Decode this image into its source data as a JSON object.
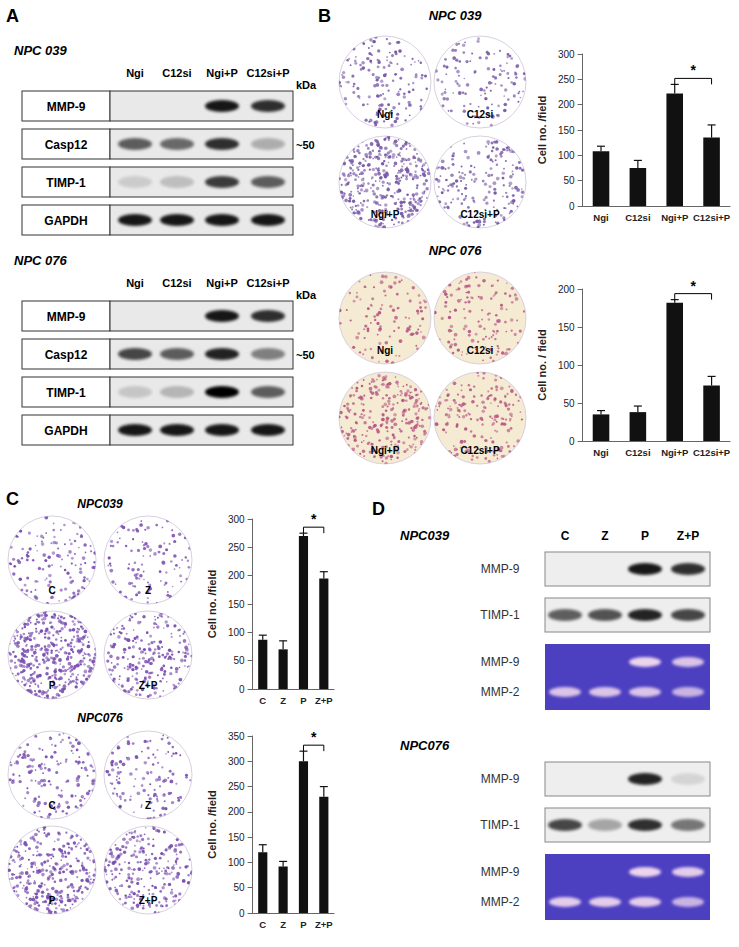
{
  "chart_data": [
    {
      "type": "bar",
      "categories": [
        "Ngi",
        "C12si",
        "Ngi+P",
        "C12si+P"
      ],
      "values": [
        108,
        75,
        222,
        135
      ],
      "errors": [
        10,
        15,
        18,
        25
      ],
      "color": "#111111",
      "y_label": "Cell no. /field",
      "ylim": [
        0,
        300
      ],
      "yticks": [
        0,
        50,
        100,
        150,
        200,
        250,
        300
      ],
      "grid": false,
      "annotations": [
        {
          "from": "Ngi+P",
          "to": "C12si+P",
          "text": "*"
        }
      ]
    },
    {
      "type": "bar",
      "categories": [
        "Ngi",
        "C12si",
        "Ngi+P",
        "C12si+P"
      ],
      "values": [
        35,
        38,
        182,
        73
      ],
      "errors": [
        5,
        8,
        4,
        12
      ],
      "color": "#111111",
      "y_label": "Cell no. / field",
      "ylim": [
        0,
        200
      ],
      "yticks": [
        0,
        50,
        100,
        150,
        200
      ],
      "grid": false,
      "annotations": [
        {
          "from": "Ngi+P",
          "to": "C12si+P",
          "text": "*"
        }
      ]
    },
    {
      "type": "bar",
      "categories": [
        "C",
        "Z",
        "P",
        "Z+P"
      ],
      "values": [
        87,
        70,
        270,
        195
      ],
      "errors": [
        8,
        15,
        5,
        12
      ],
      "color": "#111111",
      "y_label": "Cell no. /field",
      "ylim": [
        0,
        300
      ],
      "yticks": [
        0,
        50,
        100,
        150,
        200,
        250,
        300
      ],
      "grid": false,
      "annotations": [
        {
          "from": "P",
          "to": "Z+P",
          "text": "*"
        }
      ]
    },
    {
      "type": "bar",
      "categories": [
        "C",
        "Z",
        "P",
        "Z+P"
      ],
      "values": [
        120,
        92,
        300,
        230
      ],
      "errors": [
        15,
        10,
        20,
        20
      ],
      "color": "#111111",
      "y_label": "Cell no. /field",
      "ylim": [
        0,
        350
      ],
      "yticks": [
        0,
        50,
        100,
        150,
        200,
        250,
        300,
        350
      ],
      "grid": false,
      "annotations": [
        {
          "from": "P",
          "to": "Z+P",
          "text": "*"
        }
      ]
    }
  ],
  "panels": {
    "A": {
      "label": "A",
      "blots": [
        {
          "cell_line": "NPC 039",
          "lanes": [
            "Ngi",
            "C12si",
            "Ngi+P",
            "C12si+P"
          ],
          "unit": "kDa",
          "rows": [
            {
              "name": "MMP-9"
            },
            {
              "name": "Casp12",
              "size_label": "~50"
            },
            {
              "name": "TIMP-1"
            },
            {
              "name": "GAPDH"
            }
          ]
        },
        {
          "cell_line": "NPC 076",
          "lanes": [
            "Ngi",
            "C12si",
            "Ngi+P",
            "C12si+P"
          ],
          "unit": "kDa",
          "rows": [
            {
              "name": "MMP-9"
            },
            {
              "name": "Casp12",
              "size_label": "~50"
            },
            {
              "name": "TIMP-1"
            },
            {
              "name": "GAPDH"
            }
          ]
        }
      ]
    },
    "B": {
      "label": "B",
      "groups": [
        {
          "cell_line": "NPC 039",
          "images": [
            "Ngi",
            "C12si",
            "Ngi+P",
            "C12si+P"
          ]
        },
        {
          "cell_line": "NPC 076",
          "images": [
            "Ngi",
            "C12si",
            "Ngi+P",
            "C12si+P"
          ]
        }
      ]
    },
    "C": {
      "label": "C",
      "groups": [
        {
          "cell_line": "NPC039",
          "images": [
            "C",
            "Z",
            "P",
            "Z+P"
          ]
        },
        {
          "cell_line": "NPC076",
          "images": [
            "C",
            "Z",
            "P",
            "Z+P"
          ]
        }
      ]
    },
    "D": {
      "label": "D",
      "lanes": [
        "C",
        "Z",
        "P",
        "Z+P"
      ],
      "groups": [
        {
          "cell_line": "NPC039",
          "blots": [
            "MMP-9",
            "TIMP-1"
          ],
          "zymogram": [
            "MMP-9",
            "MMP-2"
          ]
        },
        {
          "cell_line": "NPC076",
          "blots": [
            "MMP-9",
            "TIMP-1"
          ],
          "zymogram": [
            "MMP-9",
            "MMP-2"
          ]
        }
      ]
    }
  }
}
